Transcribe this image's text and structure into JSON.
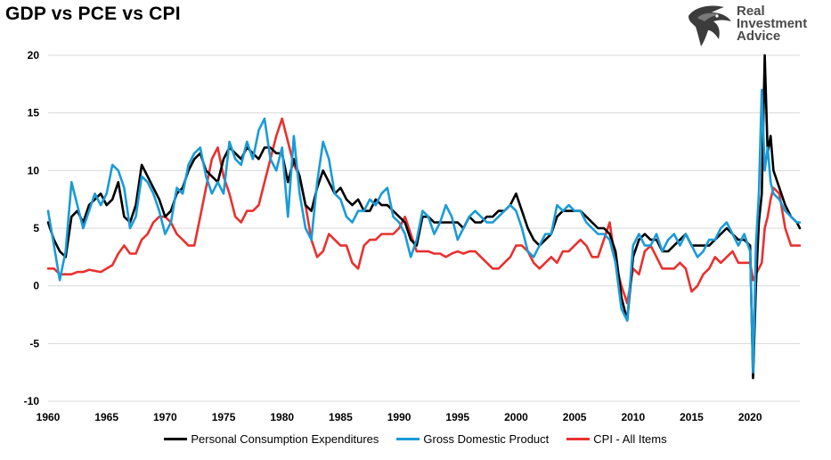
{
  "title": "GDP vs PCE vs CPI",
  "logo": {
    "line1": "Real",
    "line2": "Investment",
    "line3": "Advice",
    "icon": "eagle-head-icon"
  },
  "colors": {
    "pce": "#000000",
    "gdp": "#1a9bd7",
    "cpi": "#e8312f",
    "grid": "#d9d9d9",
    "logo_text": "#4a4a4a"
  },
  "chart_data": {
    "type": "line",
    "title": "GDP vs PCE vs CPI",
    "xlabel": "",
    "ylabel": "",
    "xlim": [
      1960,
      2024.25
    ],
    "ylim": [
      -10,
      20
    ],
    "y_ticks": [
      -10,
      -5,
      0,
      5,
      10,
      15,
      20
    ],
    "x_ticks": [
      1960,
      1965,
      1970,
      1975,
      1980,
      1985,
      1990,
      1995,
      2000,
      2005,
      2010,
      2015,
      2020
    ],
    "grid": "horizontal",
    "legend_position": "bottom",
    "series": [
      {
        "name": "Personal Consumption Expenditures",
        "color": "#000000",
        "x": [
          1960.0,
          1960.5,
          1961.0,
          1961.5,
          1962.0,
          1962.5,
          1963.0,
          1963.5,
          1964.0,
          1964.5,
          1965.0,
          1965.5,
          1966.0,
          1966.5,
          1967.0,
          1967.5,
          1968.0,
          1968.5,
          1969.0,
          1969.5,
          1970.0,
          1970.5,
          1971.0,
          1971.5,
          1972.0,
          1972.5,
          1973.0,
          1973.5,
          1974.0,
          1974.5,
          1975.0,
          1975.5,
          1976.0,
          1976.5,
          1977.0,
          1977.5,
          1978.0,
          1978.5,
          1979.0,
          1979.5,
          1980.0,
          1980.5,
          1981.0,
          1981.5,
          1982.0,
          1982.5,
          1983.0,
          1983.5,
          1984.0,
          1984.5,
          1985.0,
          1985.5,
          1986.0,
          1986.5,
          1987.0,
          1987.5,
          1988.0,
          1988.5,
          1989.0,
          1989.5,
          1990.0,
          1990.5,
          1991.0,
          1991.5,
          1992.0,
          1992.5,
          1993.0,
          1993.5,
          1994.0,
          1994.5,
          1995.0,
          1995.5,
          1996.0,
          1996.5,
          1997.0,
          1997.5,
          1998.0,
          1998.5,
          1999.0,
          1999.5,
          2000.0,
          2000.5,
          2001.0,
          2001.5,
          2002.0,
          2002.5,
          2003.0,
          2003.5,
          2004.0,
          2004.5,
          2005.0,
          2005.5,
          2006.0,
          2006.5,
          2007.0,
          2007.5,
          2008.0,
          2008.5,
          2009.0,
          2009.5,
          2010.0,
          2010.5,
          2011.0,
          2011.5,
          2012.0,
          2012.5,
          2013.0,
          2013.5,
          2014.0,
          2014.5,
          2015.0,
          2015.5,
          2016.0,
          2016.5,
          2017.0,
          2017.5,
          2018.0,
          2018.5,
          2019.0,
          2019.5,
          2020.0,
          2020.25,
          2020.5,
          2020.75,
          2021.0,
          2021.25,
          2021.5,
          2021.75,
          2022.0,
          2022.5,
          2023.0,
          2023.5,
          2024.0,
          2024.25
        ],
        "y": [
          5.5,
          4.0,
          3.0,
          2.5,
          6.0,
          6.5,
          5.5,
          7.0,
          7.5,
          8.0,
          7.0,
          7.5,
          9.0,
          6.0,
          5.5,
          7.0,
          10.5,
          9.5,
          8.5,
          7.5,
          6.0,
          6.5,
          8.0,
          8.5,
          10.0,
          11.0,
          11.5,
          10.0,
          9.5,
          9.0,
          11.0,
          12.0,
          11.5,
          11.0,
          12.0,
          11.5,
          11.0,
          12.0,
          12.0,
          11.5,
          11.5,
          9.0,
          11.0,
          9.5,
          7.0,
          6.5,
          8.5,
          10.0,
          9.0,
          8.0,
          8.5,
          7.5,
          7.0,
          7.5,
          6.5,
          6.5,
          7.5,
          7.0,
          7.0,
          6.5,
          6.0,
          5.5,
          4.0,
          3.5,
          6.0,
          6.0,
          5.5,
          5.5,
          5.5,
          5.5,
          5.5,
          5.0,
          6.0,
          5.5,
          5.5,
          6.0,
          6.0,
          6.5,
          6.5,
          7.0,
          8.0,
          6.5,
          5.0,
          4.0,
          3.5,
          4.0,
          4.5,
          6.0,
          6.5,
          6.5,
          6.5,
          6.5,
          6.0,
          5.5,
          5.0,
          5.0,
          4.5,
          3.0,
          -1.0,
          -3.0,
          2.5,
          4.0,
          4.5,
          4.0,
          4.0,
          3.0,
          3.0,
          3.5,
          4.0,
          4.5,
          3.5,
          3.5,
          3.5,
          3.5,
          4.0,
          4.5,
          5.0,
          4.5,
          4.0,
          4.0,
          3.5,
          -8.0,
          0.0,
          5.5,
          8.0,
          20.0,
          11.5,
          13.0,
          10.0,
          8.5,
          7.0,
          6.0,
          5.5,
          5.0
        ]
      },
      {
        "name": "Gross Domestic Product",
        "color": "#1a9bd7",
        "x": [
          1960.0,
          1960.5,
          1961.0,
          1961.5,
          1962.0,
          1962.5,
          1963.0,
          1963.5,
          1964.0,
          1964.5,
          1965.0,
          1965.5,
          1966.0,
          1966.5,
          1967.0,
          1967.5,
          1968.0,
          1968.5,
          1969.0,
          1969.5,
          1970.0,
          1970.5,
          1971.0,
          1971.5,
          1972.0,
          1972.5,
          1973.0,
          1973.5,
          1974.0,
          1974.5,
          1975.0,
          1975.5,
          1976.0,
          1976.5,
          1977.0,
          1977.5,
          1978.0,
          1978.5,
          1979.0,
          1979.5,
          1980.0,
          1980.5,
          1981.0,
          1981.5,
          1982.0,
          1982.5,
          1983.0,
          1983.5,
          1984.0,
          1984.5,
          1985.0,
          1985.5,
          1986.0,
          1986.5,
          1987.0,
          1987.5,
          1988.0,
          1988.5,
          1989.0,
          1989.5,
          1990.0,
          1990.5,
          1991.0,
          1991.5,
          1992.0,
          1992.5,
          1993.0,
          1993.5,
          1994.0,
          1994.5,
          1995.0,
          1995.5,
          1996.0,
          1996.5,
          1997.0,
          1997.5,
          1998.0,
          1998.5,
          1999.0,
          1999.5,
          2000.0,
          2000.5,
          2001.0,
          2001.5,
          2002.0,
          2002.5,
          2003.0,
          2003.5,
          2004.0,
          2004.5,
          2005.0,
          2005.5,
          2006.0,
          2006.5,
          2007.0,
          2007.5,
          2008.0,
          2008.5,
          2009.0,
          2009.5,
          2010.0,
          2010.5,
          2011.0,
          2011.5,
          2012.0,
          2012.5,
          2013.0,
          2013.5,
          2014.0,
          2014.5,
          2015.0,
          2015.5,
          2016.0,
          2016.5,
          2017.0,
          2017.5,
          2018.0,
          2018.5,
          2019.0,
          2019.5,
          2020.0,
          2020.25,
          2020.5,
          2020.75,
          2021.0,
          2021.25,
          2021.5,
          2021.75,
          2022.0,
          2022.5,
          2023.0,
          2023.5,
          2024.0,
          2024.25
        ],
        "y": [
          6.5,
          3.5,
          0.5,
          3.0,
          9.0,
          7.0,
          5.0,
          6.5,
          8.0,
          7.0,
          8.0,
          10.5,
          10.0,
          8.5,
          5.0,
          6.0,
          9.5,
          9.0,
          8.0,
          6.5,
          4.5,
          5.5,
          8.5,
          8.0,
          10.5,
          11.5,
          12.0,
          9.5,
          8.0,
          9.0,
          8.0,
          12.5,
          11.0,
          10.5,
          12.5,
          11.0,
          13.5,
          14.5,
          11.0,
          10.0,
          12.0,
          6.0,
          13.0,
          8.0,
          5.0,
          4.0,
          9.0,
          12.5,
          11.0,
          8.0,
          7.5,
          6.0,
          5.5,
          6.5,
          6.5,
          7.5,
          7.0,
          8.0,
          8.5,
          6.0,
          5.5,
          4.5,
          2.5,
          4.0,
          6.5,
          6.0,
          4.5,
          5.5,
          7.0,
          6.0,
          4.0,
          5.0,
          6.0,
          6.5,
          6.0,
          5.5,
          5.5,
          6.0,
          6.5,
          7.0,
          6.5,
          5.0,
          3.0,
          2.5,
          3.5,
          4.5,
          4.5,
          7.0,
          6.5,
          7.0,
          6.5,
          6.5,
          5.5,
          5.0,
          4.5,
          4.5,
          4.0,
          2.0,
          -2.0,
          -3.0,
          3.5,
          4.5,
          3.5,
          3.5,
          4.5,
          3.0,
          4.0,
          4.5,
          3.5,
          4.5,
          3.5,
          2.5,
          3.0,
          4.0,
          4.0,
          5.0,
          5.5,
          4.5,
          3.5,
          4.5,
          3.0,
          -7.5,
          3.5,
          8.0,
          17.0,
          10.0,
          12.0,
          9.0,
          8.0,
          7.5,
          6.5,
          6.0,
          5.5,
          5.5
        ]
      },
      {
        "name": "CPI - All Items",
        "color": "#e8312f",
        "x": [
          1960.0,
          1960.5,
          1961.0,
          1961.5,
          1962.0,
          1962.5,
          1963.0,
          1963.5,
          1964.0,
          1964.5,
          1965.0,
          1965.5,
          1966.0,
          1966.5,
          1967.0,
          1967.5,
          1968.0,
          1968.5,
          1969.0,
          1969.5,
          1970.0,
          1970.5,
          1971.0,
          1971.5,
          1972.0,
          1972.5,
          1973.0,
          1973.5,
          1974.0,
          1974.5,
          1975.0,
          1975.5,
          1976.0,
          1976.5,
          1977.0,
          1977.5,
          1978.0,
          1978.5,
          1979.0,
          1979.5,
          1980.0,
          1980.5,
          1981.0,
          1981.5,
          1982.0,
          1982.5,
          1983.0,
          1983.5,
          1984.0,
          1984.5,
          1985.0,
          1985.5,
          1986.0,
          1986.5,
          1987.0,
          1987.5,
          1988.0,
          1988.5,
          1989.0,
          1989.5,
          1990.0,
          1990.5,
          1991.0,
          1991.5,
          1992.0,
          1992.5,
          1993.0,
          1993.5,
          1994.0,
          1994.5,
          1995.0,
          1995.5,
          1996.0,
          1996.5,
          1997.0,
          1997.5,
          1998.0,
          1998.5,
          1999.0,
          1999.5,
          2000.0,
          2000.5,
          2001.0,
          2001.5,
          2002.0,
          2002.5,
          2003.0,
          2003.5,
          2004.0,
          2004.5,
          2005.0,
          2005.5,
          2006.0,
          2006.5,
          2007.0,
          2007.5,
          2008.0,
          2008.5,
          2009.0,
          2009.5,
          2010.0,
          2010.5,
          2011.0,
          2011.5,
          2012.0,
          2012.5,
          2013.0,
          2013.5,
          2014.0,
          2014.5,
          2015.0,
          2015.5,
          2016.0,
          2016.5,
          2017.0,
          2017.5,
          2018.0,
          2018.5,
          2019.0,
          2019.5,
          2020.0,
          2020.25,
          2020.5,
          2020.75,
          2021.0,
          2021.25,
          2021.5,
          2021.75,
          2022.0,
          2022.5,
          2023.0,
          2023.5,
          2024.0,
          2024.25
        ],
        "y": [
          1.5,
          1.5,
          1.0,
          1.0,
          1.0,
          1.2,
          1.2,
          1.4,
          1.3,
          1.2,
          1.5,
          1.8,
          2.8,
          3.5,
          2.8,
          2.8,
          4.0,
          4.5,
          5.5,
          6.0,
          6.0,
          5.5,
          4.5,
          4.0,
          3.5,
          3.5,
          6.0,
          8.5,
          11.0,
          12.0,
          9.5,
          8.0,
          6.0,
          5.5,
          6.5,
          6.5,
          7.0,
          9.0,
          11.0,
          13.0,
          14.5,
          12.5,
          10.5,
          9.5,
          7.0,
          4.0,
          2.5,
          3.0,
          4.5,
          4.0,
          3.5,
          3.5,
          2.0,
          1.5,
          3.5,
          4.0,
          4.0,
          4.5,
          4.5,
          4.5,
          5.0,
          6.0,
          4.5,
          3.0,
          3.0,
          3.0,
          2.8,
          2.8,
          2.5,
          2.8,
          3.0,
          2.8,
          3.0,
          3.0,
          2.5,
          2.0,
          1.5,
          1.5,
          2.0,
          2.5,
          3.5,
          3.5,
          3.0,
          2.0,
          1.5,
          2.0,
          2.5,
          2.0,
          3.0,
          3.0,
          3.5,
          4.0,
          3.5,
          2.5,
          2.5,
          4.0,
          5.5,
          2.0,
          0.0,
          -1.5,
          1.5,
          1.0,
          3.0,
          3.5,
          2.5,
          1.5,
          1.5,
          1.5,
          2.0,
          1.5,
          -0.5,
          0.0,
          1.0,
          1.5,
          2.5,
          2.0,
          2.5,
          3.0,
          2.0,
          2.0,
          2.0,
          0.5,
          1.0,
          1.5,
          2.0,
          5.0,
          6.0,
          7.5,
          8.5,
          8.0,
          5.0,
          3.5,
          3.5,
          3.5
        ]
      }
    ]
  }
}
